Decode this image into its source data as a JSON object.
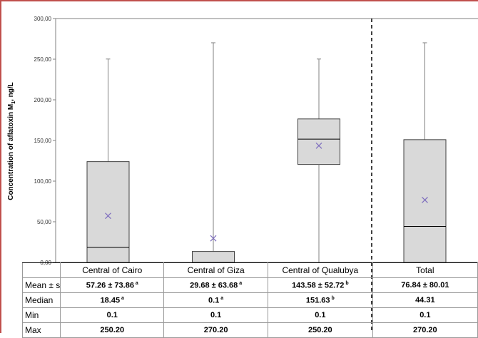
{
  "chart_data": {
    "type": "box",
    "ylabel_main": "Concentration of aflatoxin M",
    "ylabel_sub": "1",
    "ylabel_unit": ", ng/L",
    "ylim": [
      0,
      300
    ],
    "yticks": [
      "0,00",
      "50,00",
      "100,00",
      "150,00",
      "200,00",
      "250,00",
      "300,00"
    ],
    "grid": false,
    "categories": [
      "Central of Cairo",
      "Central of Giza",
      "Central of Qualubya",
      "Total"
    ],
    "boxes": [
      {
        "min": 0.1,
        "q1": 0.1,
        "median": 18.45,
        "q3": 124,
        "max": 250.2,
        "mean": 57.26
      },
      {
        "min": 0.1,
        "q1": 0.1,
        "median": 0.1,
        "q3": 13.5,
        "max": 270.2,
        "mean": 29.68
      },
      {
        "min": 0.1,
        "q1": 120.5,
        "median": 151.63,
        "q3": 176.5,
        "max": 250.2,
        "mean": 143.58
      },
      {
        "min": 0.1,
        "q1": 0.1,
        "median": 44.31,
        "q3": 151,
        "max": 270.2,
        "mean": 76.84
      }
    ],
    "colors": {
      "box_fill": "#d9d9d9",
      "box_stroke": "#404040",
      "whisker": "#808080",
      "mean_marker": "#7f6fbf",
      "frame": "#c0504d"
    },
    "table": {
      "rows": [
        {
          "label": "Mean ± s",
          "cells": [
            {
              "v": "57.26 ± 73.86",
              "s": "a"
            },
            {
              "v": "29.68 ± 63.68",
              "s": "a"
            },
            {
              "v": "143.58 ± 52.72",
              "s": "b"
            },
            {
              "v": "76.84 ± 80.01",
              "s": ""
            }
          ]
        },
        {
          "label": "Median",
          "cells": [
            {
              "v": "18.45",
              "s": "a"
            },
            {
              "v": "0.1",
              "s": "a"
            },
            {
              "v": "151.63",
              "s": "b"
            },
            {
              "v": "44.31",
              "s": ""
            }
          ]
        },
        {
          "label": "Min",
          "cells": [
            {
              "v": "0.1",
              "s": ""
            },
            {
              "v": "0.1",
              "s": ""
            },
            {
              "v": "0.1",
              "s": ""
            },
            {
              "v": "0.1",
              "s": ""
            }
          ]
        },
        {
          "label": "Max",
          "cells": [
            {
              "v": "250.20",
              "s": ""
            },
            {
              "v": "270.20",
              "s": ""
            },
            {
              "v": "250.20",
              "s": ""
            },
            {
              "v": "270.20",
              "s": ""
            }
          ]
        }
      ]
    }
  }
}
